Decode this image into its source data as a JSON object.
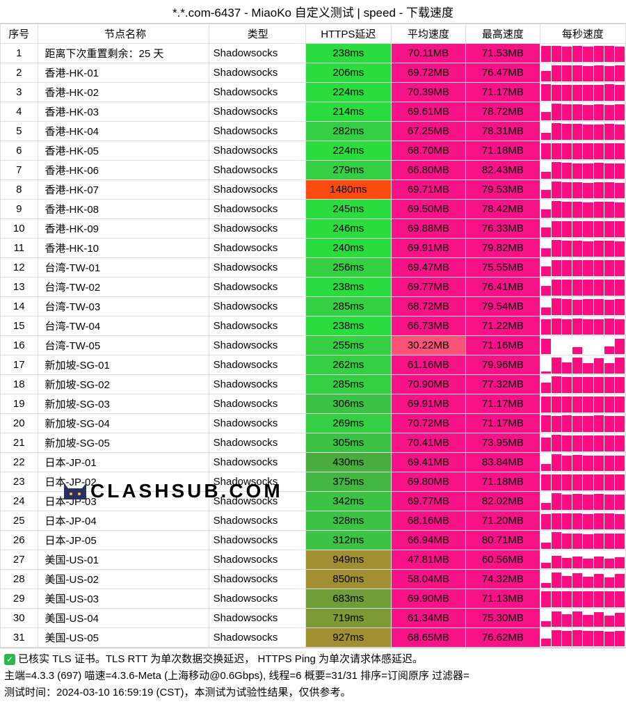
{
  "title": "*.*.com-6437 - MiaoKo 自定义测试 | speed - 下载速度",
  "headers": {
    "idx": "序号",
    "name": "节点名称",
    "type": "类型",
    "latency": "HTTPS延迟",
    "avg": "平均速度",
    "max": "最高速度",
    "spd": "每秒速度"
  },
  "colors": {
    "green_light": "#2bdc3e",
    "green_mid": "#35c844",
    "green_dark": "#4aab3e",
    "olive": "#a28f32",
    "orange": "#ff4a12",
    "pink": "#f71288",
    "pink_light": "#fb5377",
    "spark": "#ff0b80"
  },
  "watermark": "CLASHSUB.COM",
  "rows": [
    {
      "idx": 1,
      "name": "距离下次重置剩余：25 天",
      "type": "Shadowsocks",
      "lat": "238ms",
      "lat_c": "#2bdc3e",
      "avg": "70.11MB",
      "avg_c": "#f71288",
      "max": "71.53MB",
      "max_c": "#f71288",
      "spark": [
        95,
        92,
        90,
        93,
        91,
        94,
        92,
        90
      ]
    },
    {
      "idx": 2,
      "name": "香港-HK-01",
      "type": "Shadowsocks",
      "lat": "206ms",
      "lat_c": "#2bdc3e",
      "avg": "69.72MB",
      "avg_c": "#f71288",
      "max": "76.47MB",
      "max_c": "#f71288",
      "spark": [
        60,
        95,
        92,
        94,
        90,
        93,
        91,
        92
      ]
    },
    {
      "idx": 3,
      "name": "香港-HK-02",
      "type": "Shadowsocks",
      "lat": "224ms",
      "lat_c": "#2bdc3e",
      "avg": "70.39MB",
      "avg_c": "#f71288",
      "max": "71.17MB",
      "max_c": "#f71288",
      "spark": [
        96,
        94,
        95,
        93,
        95,
        94,
        96,
        93
      ]
    },
    {
      "idx": 4,
      "name": "香港-HK-03",
      "type": "Shadowsocks",
      "lat": "214ms",
      "lat_c": "#2bdc3e",
      "avg": "69.61MB",
      "avg_c": "#f71288",
      "max": "78.72MB",
      "max_c": "#f71288",
      "spark": [
        50,
        96,
        94,
        92,
        90,
        93,
        91,
        94
      ]
    },
    {
      "idx": 5,
      "name": "香港-HK-04",
      "type": "Shadowsocks",
      "lat": "282ms",
      "lat_c": "#34cf42",
      "avg": "67.25MB",
      "avg_c": "#f71288",
      "max": "78.31MB",
      "max_c": "#f71288",
      "spark": [
        40,
        96,
        93,
        92,
        90,
        91,
        92,
        90
      ]
    },
    {
      "idx": 6,
      "name": "香港-HK-05",
      "type": "Shadowsocks",
      "lat": "224ms",
      "lat_c": "#2bdc3e",
      "avg": "68.70MB",
      "avg_c": "#f71288",
      "max": "71.18MB",
      "max_c": "#f71288",
      "spark": [
        92,
        95,
        93,
        94,
        92,
        93,
        94,
        92
      ]
    },
    {
      "idx": 7,
      "name": "香港-HK-06",
      "type": "Shadowsocks",
      "lat": "279ms",
      "lat_c": "#34cf42",
      "avg": "66.80MB",
      "avg_c": "#f71288",
      "max": "82.43MB",
      "max_c": "#f71288",
      "spark": [
        38,
        97,
        92,
        90,
        91,
        92,
        90,
        91
      ]
    },
    {
      "idx": 8,
      "name": "香港-HK-07",
      "type": "Shadowsocks",
      "lat": "1480ms",
      "lat_c": "#ff4a12",
      "avg": "69.71MB",
      "avg_c": "#f71288",
      "max": "79.53MB",
      "max_c": "#f71288",
      "spark": [
        50,
        96,
        92,
        93,
        91,
        92,
        93,
        90
      ]
    },
    {
      "idx": 9,
      "name": "香港-HK-08",
      "type": "Shadowsocks",
      "lat": "245ms",
      "lat_c": "#2bdc3e",
      "avg": "69.50MB",
      "avg_c": "#f71288",
      "max": "78.42MB",
      "max_c": "#f71288",
      "spark": [
        48,
        96,
        93,
        92,
        91,
        93,
        92,
        91
      ]
    },
    {
      "idx": 10,
      "name": "香港-HK-09",
      "type": "Shadowsocks",
      "lat": "246ms",
      "lat_c": "#2bdc3e",
      "avg": "69.88MB",
      "avg_c": "#f71288",
      "max": "76.33MB",
      "max_c": "#f71288",
      "spark": [
        55,
        95,
        93,
        94,
        92,
        93,
        94,
        92
      ]
    },
    {
      "idx": 11,
      "name": "香港-HK-10",
      "type": "Shadowsocks",
      "lat": "240ms",
      "lat_c": "#2bdc3e",
      "avg": "69.91MB",
      "avg_c": "#f71288",
      "max": "79.82MB",
      "max_c": "#f71288",
      "spark": [
        50,
        97,
        93,
        92,
        91,
        93,
        92,
        91
      ]
    },
    {
      "idx": 12,
      "name": "台湾-TW-01",
      "type": "Shadowsocks",
      "lat": "256ms",
      "lat_c": "#34cf42",
      "avg": "69.47MB",
      "avg_c": "#f71288",
      "max": "75.55MB",
      "max_c": "#f71288",
      "spark": [
        58,
        95,
        93,
        92,
        93,
        92,
        93,
        92
      ]
    },
    {
      "idx": 13,
      "name": "台湾-TW-02",
      "type": "Shadowsocks",
      "lat": "238ms",
      "lat_c": "#2bdc3e",
      "avg": "69.77MB",
      "avg_c": "#f71288",
      "max": "76.41MB",
      "max_c": "#f71288",
      "spark": [
        56,
        95,
        93,
        94,
        92,
        93,
        94,
        92
      ]
    },
    {
      "idx": 14,
      "name": "台湾-TW-03",
      "type": "Shadowsocks",
      "lat": "285ms",
      "lat_c": "#34cf42",
      "avg": "68.72MB",
      "avg_c": "#f71288",
      "max": "79.54MB",
      "max_c": "#f71288",
      "spark": [
        45,
        96,
        92,
        91,
        93,
        92,
        91,
        92
      ]
    },
    {
      "idx": 15,
      "name": "台湾-TW-04",
      "type": "Shadowsocks",
      "lat": "238ms",
      "lat_c": "#2bdc3e",
      "avg": "66.73MB",
      "avg_c": "#f71288",
      "max": "71.22MB",
      "max_c": "#f71288",
      "spark": [
        88,
        93,
        91,
        92,
        90,
        91,
        92,
        90
      ]
    },
    {
      "idx": 16,
      "name": "台湾-TW-05",
      "type": "Shadowsocks",
      "lat": "255ms",
      "lat_c": "#34cf42",
      "avg": "30.22MB",
      "avg_c": "#fb5377",
      "max": "71.16MB",
      "max_c": "#f71288",
      "spark": [
        88,
        0,
        0,
        40,
        0,
        0,
        42,
        88
      ]
    },
    {
      "idx": 17,
      "name": "新加坡-SG-01",
      "type": "Shadowsocks",
      "lat": "262ms",
      "lat_c": "#34cf42",
      "avg": "61.16MB",
      "avg_c": "#f71288",
      "max": "79.96MB",
      "max_c": "#f71288",
      "spark": [
        10,
        92,
        65,
        95,
        62,
        90,
        60,
        92
      ]
    },
    {
      "idx": 18,
      "name": "新加坡-SG-02",
      "type": "Shadowsocks",
      "lat": "285ms",
      "lat_c": "#34cf42",
      "avg": "70.90MB",
      "avg_c": "#f71288",
      "max": "77.32MB",
      "max_c": "#f71288",
      "spark": [
        60,
        96,
        94,
        93,
        94,
        93,
        94,
        93
      ]
    },
    {
      "idx": 19,
      "name": "新加坡-SG-03",
      "type": "Shadowsocks",
      "lat": "306ms",
      "lat_c": "#3cc244",
      "avg": "69.91MB",
      "avg_c": "#f71288",
      "max": "71.17MB",
      "max_c": "#f71288",
      "spark": [
        95,
        94,
        95,
        93,
        94,
        95,
        93,
        94
      ]
    },
    {
      "idx": 20,
      "name": "新加坡-SG-04",
      "type": "Shadowsocks",
      "lat": "269ms",
      "lat_c": "#34cf42",
      "avg": "70.72MB",
      "avg_c": "#f71288",
      "max": "71.17MB",
      "max_c": "#f71288",
      "spark": [
        96,
        95,
        96,
        94,
        95,
        96,
        94,
        95
      ]
    },
    {
      "idx": 21,
      "name": "新加坡-SG-05",
      "type": "Shadowsocks",
      "lat": "305ms",
      "lat_c": "#3cc244",
      "avg": "70.41MB",
      "avg_c": "#f71288",
      "max": "73.95MB",
      "max_c": "#f71288",
      "spark": [
        80,
        96,
        94,
        95,
        93,
        94,
        95,
        93
      ]
    },
    {
      "idx": 22,
      "name": "日本-JP-01",
      "type": "Shadowsocks",
      "lat": "430ms",
      "lat_c": "#4aab3e",
      "avg": "69.41MB",
      "avg_c": "#f71288",
      "max": "83.84MB",
      "max_c": "#f71288",
      "spark": [
        40,
        98,
        90,
        92,
        88,
        91,
        89,
        90
      ]
    },
    {
      "idx": 23,
      "name": "日本-JP-02",
      "type": "Shadowsocks",
      "lat": "375ms",
      "lat_c": "#43b541",
      "avg": "69.80MB",
      "avg_c": "#f71288",
      "max": "71.18MB",
      "max_c": "#f71288",
      "spark": [
        94,
        95,
        93,
        94,
        93,
        94,
        93,
        94
      ]
    },
    {
      "idx": 24,
      "name": "日本-JP-03",
      "type": "Shadowsocks",
      "lat": "342ms",
      "lat_c": "#3cc244",
      "avg": "69.77MB",
      "avg_c": "#f71288",
      "max": "82.02MB",
      "max_c": "#f71288",
      "spark": [
        40,
        97,
        91,
        93,
        89,
        92,
        90,
        91
      ]
    },
    {
      "idx": 25,
      "name": "日本-JP-04",
      "type": "Shadowsocks",
      "lat": "328ms",
      "lat_c": "#3cc244",
      "avg": "68.16MB",
      "avg_c": "#f71288",
      "max": "71.20MB",
      "max_c": "#f71288",
      "spark": [
        90,
        94,
        92,
        93,
        91,
        92,
        93,
        91
      ]
    },
    {
      "idx": 26,
      "name": "日本-JP-05",
      "type": "Shadowsocks",
      "lat": "312ms",
      "lat_c": "#3cc244",
      "avg": "66.94MB",
      "avg_c": "#f71288",
      "max": "80.71MB",
      "max_c": "#f71288",
      "spark": [
        35,
        96,
        88,
        90,
        87,
        89,
        88,
        89
      ]
    },
    {
      "idx": 27,
      "name": "美国-US-01",
      "type": "Shadowsocks",
      "lat": "949ms",
      "lat_c": "#a28f32",
      "avg": "47.81MB",
      "avg_c": "#f71288",
      "max": "60.56MB",
      "max_c": "#f71288",
      "spark": [
        30,
        72,
        60,
        70,
        58,
        68,
        55,
        65
      ]
    },
    {
      "idx": 28,
      "name": "美国-US-02",
      "type": "Shadowsocks",
      "lat": "850ms",
      "lat_c": "#a28f32",
      "avg": "58.04MB",
      "avg_c": "#f71288",
      "max": "74.32MB",
      "max_c": "#f71288",
      "spark": [
        28,
        88,
        70,
        85,
        65,
        82,
        62,
        80
      ]
    },
    {
      "idx": 29,
      "name": "美国-US-03",
      "type": "Shadowsocks",
      "lat": "683ms",
      "lat_c": "#6f9e38",
      "avg": "69.90MB",
      "avg_c": "#f71288",
      "max": "71.13MB",
      "max_c": "#f71288",
      "spark": [
        94,
        95,
        93,
        94,
        93,
        94,
        93,
        94
      ]
    },
    {
      "idx": 30,
      "name": "美国-US-04",
      "type": "Shadowsocks",
      "lat": "719ms",
      "lat_c": "#7d9a36",
      "avg": "61.34MB",
      "avg_c": "#f71288",
      "max": "75.30MB",
      "max_c": "#f71288",
      "spark": [
        30,
        90,
        72,
        88,
        68,
        85,
        65,
        82
      ]
    },
    {
      "idx": 31,
      "name": "美国-US-05",
      "type": "Shadowsocks",
      "lat": "927ms",
      "lat_c": "#a28f32",
      "avg": "68.65MB",
      "avg_c": "#f71288",
      "max": "76.62MB",
      "max_c": "#f71288",
      "spark": [
        45,
        94,
        90,
        92,
        88,
        91,
        87,
        90
      ]
    }
  ],
  "footer": {
    "line1": "已核实 TLS 证书。TLS RTT 为单次数据交换延迟， HTTPS Ping 为单次请求体感延迟。",
    "line2": "主端=4.3.3 (697) 喵速=4.3.6-Meta (上海移动@0.6Gbps), 线程=6 概要=31/31 排序=订阅原序 过滤器=",
    "line3": "测试时间：2024-03-10 16:59:19 (CST)，本测试为试验性结果，仅供参考。"
  }
}
